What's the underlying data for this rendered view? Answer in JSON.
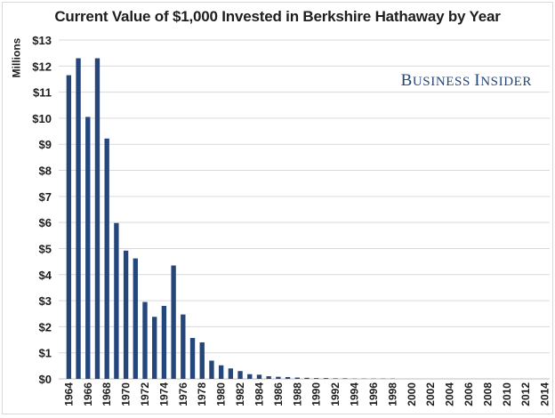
{
  "chart_data": {
    "type": "bar",
    "title": "Current Value of $1,000 Invested in Berkshire Hathaway by Year",
    "ylabel": "Millions",
    "xlabel": "",
    "ylim": [
      0,
      13
    ],
    "y_ticks": [
      "$0",
      "$1",
      "$2",
      "$3",
      "$4",
      "$5",
      "$6",
      "$7",
      "$8",
      "$9",
      "$10",
      "$11",
      "$12",
      "$13"
    ],
    "x_tick_labels": [
      "1964",
      "1966",
      "1968",
      "1970",
      "1972",
      "1974",
      "1976",
      "1978",
      "1980",
      "1982",
      "1984",
      "1986",
      "1988",
      "1990",
      "1992",
      "1994",
      "1996",
      "1998",
      "2000",
      "2002",
      "2004",
      "2006",
      "2008",
      "2010",
      "2012",
      "2014"
    ],
    "categories": [
      1964,
      1965,
      1966,
      1967,
      1968,
      1969,
      1970,
      1971,
      1972,
      1973,
      1974,
      1975,
      1976,
      1977,
      1978,
      1979,
      1980,
      1981,
      1982,
      1983,
      1984,
      1985,
      1986,
      1987,
      1988,
      1989,
      1990,
      1991,
      1992,
      1993,
      1994,
      1995,
      1996,
      1997,
      1998,
      1999,
      2000,
      2001,
      2002,
      2003,
      2004,
      2005,
      2006,
      2007,
      2008,
      2009,
      2010,
      2011,
      2012,
      2013,
      2014
    ],
    "values": [
      11.65,
      12.3,
      10.05,
      12.3,
      9.22,
      5.98,
      4.92,
      4.62,
      2.95,
      2.38,
      2.8,
      4.35,
      2.47,
      1.57,
      1.4,
      0.7,
      0.52,
      0.4,
      0.3,
      0.18,
      0.16,
      0.1,
      0.08,
      0.07,
      0.05,
      0.04,
      0.03,
      0.03,
      0.02,
      0.02,
      0.01,
      0.01,
      0.01,
      0.01,
      0.01,
      0.0,
      0.0,
      0.0,
      0.0,
      0.0,
      0.0,
      0.0,
      0.0,
      0.0,
      0.0,
      0.0,
      0.0,
      0.0,
      0.0,
      0.0,
      0.0
    ],
    "grid": true,
    "bar_color": "#24467b",
    "gridline_color": "#d9d9d9"
  },
  "branding": {
    "part1_initial": "B",
    "part1_rest": "USINESS",
    "part2_initial": "I",
    "part2_rest": "NSIDER"
  }
}
